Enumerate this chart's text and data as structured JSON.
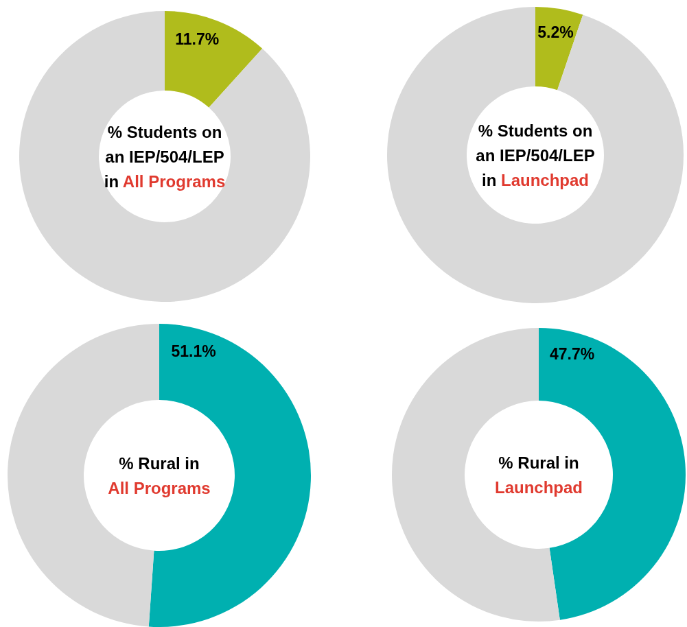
{
  "chart_data": [
    {
      "type": "donut",
      "title": "% Students on\nan IEP/504/LEP\nin",
      "subtitle": "All Programs",
      "categories": [
        null,
        null
      ],
      "values": [
        11.7,
        88.3
      ],
      "colors": [
        "#b0bc1c",
        "#d9d9d9"
      ],
      "value_labels": [
        "11.7%",
        null
      ]
    },
    {
      "type": "donut",
      "title": "% Students on\nan IEP/504/LEP\nin",
      "subtitle": "Launchpad",
      "categories": [
        null,
        null
      ],
      "values": [
        5.2,
        94.8
      ],
      "colors": [
        "#b0bc1c",
        "#d9d9d9"
      ],
      "value_labels": [
        "5.2%",
        null
      ]
    },
    {
      "type": "donut",
      "title": "% Rural in\n",
      "subtitle": "All Programs",
      "categories": [
        null,
        null
      ],
      "values": [
        51.1,
        48.9
      ],
      "colors": [
        "#00b0b0",
        "#d9d9d9"
      ],
      "value_labels": [
        "51.1%",
        null
      ]
    },
    {
      "type": "donut",
      "title": "% Rural in\n",
      "subtitle": "Launchpad",
      "categories": [
        null,
        null
      ],
      "values": [
        47.7,
        52.3
      ],
      "colors": [
        "#00b0b0",
        "#d9d9d9"
      ],
      "value_labels": [
        "47.7%",
        null
      ]
    }
  ]
}
